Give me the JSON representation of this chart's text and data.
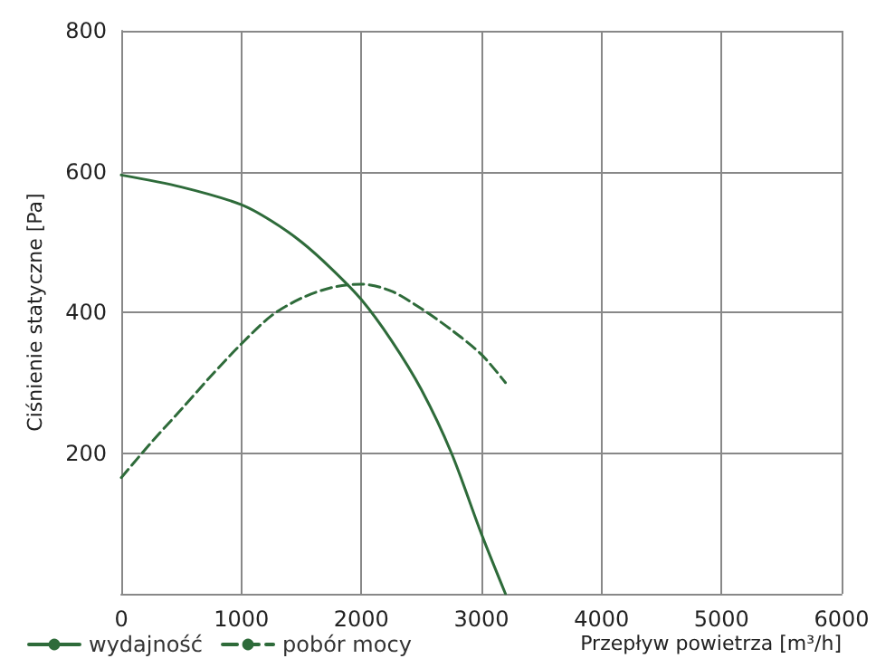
{
  "chart_data": {
    "type": "line",
    "xlabel": "Przepływ powietrza [m³/h]",
    "ylabel": "Ciśnienie statyczne [Pa]",
    "xlim": [
      0,
      6000
    ],
    "xticks": [
      0,
      1000,
      2000,
      3000,
      4000,
      5000,
      6000
    ],
    "ylim": [
      0,
      800
    ],
    "yticks": [
      {
        "value": 0,
        "label": null
      },
      200,
      400,
      600,
      800
    ],
    "grid": true,
    "legend": "bottom left",
    "marker": "none",
    "series": [
      {
        "name": "wydajność",
        "color": "#2e6b3a",
        "line_style": "solid",
        "x": [
          0,
          500,
          1000,
          1250,
          1500,
          1750,
          2000,
          2250,
          2500,
          2750,
          3000,
          3200
        ],
        "values": [
          595,
          578,
          553,
          530,
          500,
          462,
          418,
          360,
          290,
          200,
          85,
          0
        ]
      },
      {
        "name": "pobór mocy",
        "color": "#2e6b3a",
        "line_style": "dashed",
        "x": [
          0,
          250,
          500,
          750,
          1000,
          1250,
          1500,
          1750,
          2000,
          2250,
          2500,
          2750,
          3000,
          3200
        ],
        "values": [
          165,
          215,
          262,
          310,
          355,
          395,
          420,
          435,
          440,
          430,
          405,
          375,
          340,
          300
        ]
      }
    ]
  }
}
